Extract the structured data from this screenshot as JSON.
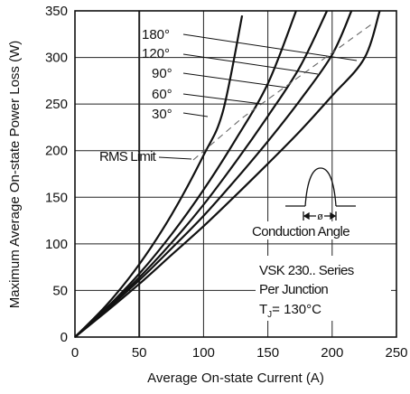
{
  "chart_data": {
    "type": "line",
    "xlabel": "Average On-state Current (A)",
    "ylabel": "Maximum Average On-state Power Loss (W)",
    "xlim": [
      0,
      250
    ],
    "ylim": [
      0,
      350
    ],
    "xticks": [
      0,
      50,
      100,
      150,
      200,
      250
    ],
    "yticks": [
      0,
      50,
      100,
      150,
      200,
      250,
      300,
      350
    ],
    "grid": true,
    "series": [
      {
        "name": "180°",
        "x": [
          0,
          25,
          50,
          75,
          100,
          125,
          150,
          175,
          200,
          225,
          237
        ],
        "y": [
          0,
          28,
          57,
          88,
          119,
          152,
          186,
          221,
          259,
          299,
          350
        ]
      },
      {
        "name": "120°",
        "x": [
          0,
          25,
          50,
          75,
          100,
          125,
          150,
          175,
          200,
          215
        ],
        "y": [
          0,
          30,
          61,
          95,
          130,
          169,
          210,
          254,
          303,
          350
        ]
      },
      {
        "name": "90°",
        "x": [
          0,
          25,
          50,
          75,
          100,
          125,
          150,
          175,
          196
        ],
        "y": [
          0,
          31,
          64,
          101,
          142,
          188,
          237,
          290,
          350
        ]
      },
      {
        "name": "60°",
        "x": [
          0,
          25,
          50,
          75,
          100,
          125,
          150,
          172
        ],
        "y": [
          0,
          32,
          68,
          110,
          158,
          212,
          272,
          350
        ]
      },
      {
        "name": "30°",
        "x": [
          0,
          25,
          50,
          75,
          100,
          115,
          130
        ],
        "y": [
          0,
          35,
          78,
          131,
          195,
          242,
          345
        ]
      },
      {
        "name": "RMS Limit",
        "style": "dashed",
        "x": [
          92,
          130,
          165,
          200,
          230
        ],
        "y": [
          190,
          235,
          270,
          305,
          335
        ]
      }
    ],
    "annotations": {
      "angle_labels": [
        "180°",
        "120°",
        "90°",
        "60°",
        "30°"
      ],
      "rms_limit": "RMS Limit",
      "inset_symbol": "ø",
      "inset_label": "Conduction Angle",
      "info_lines": [
        "VSK 230.. Series",
        "Per Junction",
        "= 130°C"
      ],
      "tj_symbol": "T",
      "tj_subscript": "J"
    },
    "colors": {
      "curves": "#111111",
      "grid": "#222222",
      "rms": "#666666"
    }
  }
}
